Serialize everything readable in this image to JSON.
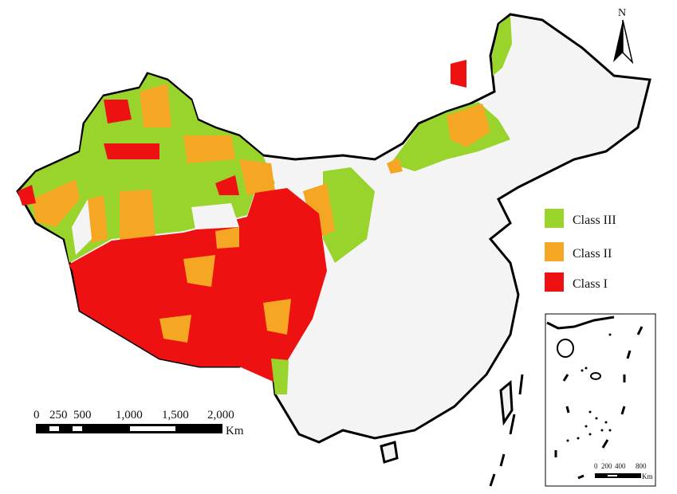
{
  "legend": {
    "items": [
      {
        "label": "Class III",
        "color": "#99d42c"
      },
      {
        "label": "Class II",
        "color": "#f5a623"
      },
      {
        "label": "Class I",
        "color": "#ee1111"
      }
    ]
  },
  "north_arrow": {
    "label": "N"
  },
  "scale_bar": {
    "ticks": [
      "0",
      "250",
      "500",
      "1,000",
      "1,500",
      "2,000"
    ],
    "unit": "Km"
  },
  "inset": {
    "scale_ticks": [
      "0",
      "200",
      "400",
      "800"
    ],
    "unit": "Km"
  },
  "colors": {
    "unclassified": "#f4f4f4",
    "border": "#000000"
  }
}
